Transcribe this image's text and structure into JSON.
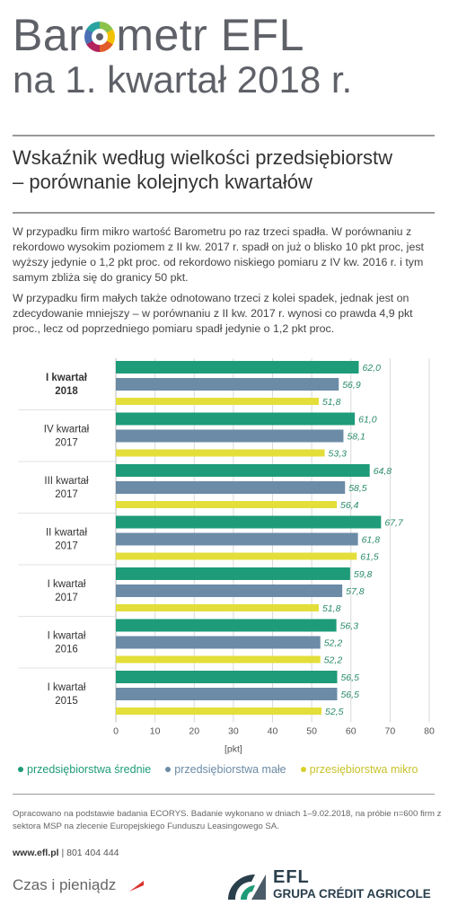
{
  "header": {
    "title_part1": "Bar",
    "title_part2": "metr EFL",
    "title_line2": "na 1. kwartał 2018 r."
  },
  "subtitle": {
    "line1": "Wskaźnik według wielkości przedsiębiorstw",
    "line2": "– porównanie kolejnych kwartałów"
  },
  "paragraphs": {
    "p1": "W przypadku firm mikro wartość Barometru po raz trzeci spadła. W porównaniu z rekordowo wysokim poziomem z II kw. 2017 r. spadł on już o blisko 10 pkt proc, jest wyższy jedynie o 1,2 pkt proc. od rekordowo niskiego pomiaru z IV kw. 2016 r. i tym samym zbliża się do granicy 50 pkt.",
    "p2": "W przypadku firm małych także odnotowano trzeci z kolei spadek, jednak jest on zdecydowanie mniejszy – w porównaniu z II kw. 2017 r. wynosi co prawda 4,9 pkt proc., lecz od poprzedniego pomiaru spadł jedynie o 1,2 pkt proc."
  },
  "chart_data": {
    "type": "bar",
    "orientation": "horizontal",
    "categories": [
      {
        "line1": "I kwartał",
        "line2": "2018",
        "bold": true
      },
      {
        "line1": "IV kwartał",
        "line2": "2017",
        "bold": false
      },
      {
        "line1": "III kwartał",
        "line2": "2017",
        "bold": false
      },
      {
        "line1": "II kwartał",
        "line2": "2017",
        "bold": false
      },
      {
        "line1": "I kwartał",
        "line2": "2017",
        "bold": false
      },
      {
        "line1": "I kwartał",
        "line2": "2016",
        "bold": false
      },
      {
        "line1": "I kwartał",
        "line2": "2015",
        "bold": false
      }
    ],
    "series": [
      {
        "name": "przedsiębiorstwa średnie",
        "color": "#1e9b78",
        "values": [
          62.0,
          61.0,
          64.8,
          67.7,
          59.8,
          56.3,
          56.5
        ],
        "labels": [
          "62,0",
          "61,0",
          "64,8",
          "67,7",
          "59,8",
          "56,3",
          "56,5"
        ]
      },
      {
        "name": "przedsiębiorstwa małe",
        "color": "#6b8ba6",
        "values": [
          56.9,
          58.1,
          58.5,
          61.8,
          57.8,
          52.2,
          56.5
        ],
        "labels": [
          "56,9",
          "58,1",
          "58,5",
          "61,8",
          "57,8",
          "52,2",
          "56,5"
        ]
      },
      {
        "name": "przesiębiorstwa mikro",
        "color": "#e3de3a",
        "values": [
          51.8,
          53.3,
          56.4,
          61.5,
          51.8,
          52.2,
          52.5
        ],
        "labels": [
          "51,8",
          "53,3",
          "56,4",
          "61,5",
          "51,8",
          "52,2",
          "52,5"
        ]
      }
    ],
    "xlim": [
      0,
      80
    ],
    "xticks": [
      0,
      10,
      20,
      30,
      40,
      50,
      60,
      70,
      80
    ],
    "xlabel": "[pkt]",
    "grid": true,
    "label_color": "#2a8a6a"
  },
  "footer": {
    "note": "Opracowano na podstawie badania ECORYS. Badanie wykonano w dniach 1–9.02.2018, na próbie n=600 firm z sektora MSP na zlecenie Europejskiego Funduszu Leasingowego SA.",
    "website": "www.efl.pl",
    "separator": "|",
    "phone": "801 404 444",
    "tagline": "Czas i pieniądz",
    "brand_name": "EFL",
    "brand_group": "GRUPA CRÉDIT AGRICOLE"
  }
}
